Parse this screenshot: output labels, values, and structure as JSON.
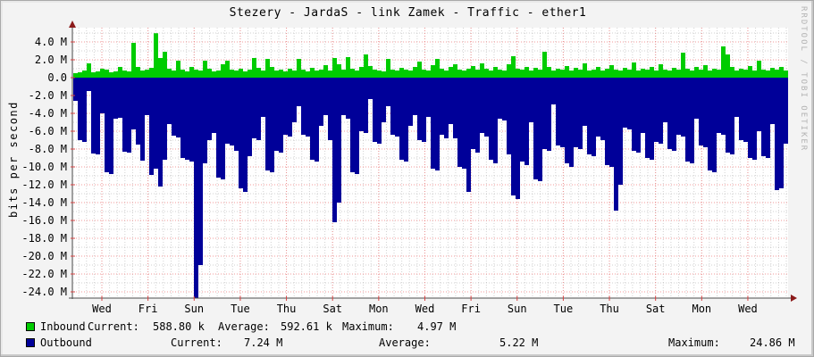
{
  "title": "Stezery - JardaS - link Zamek - Traffic - ether1",
  "watermark": "RRDTOOL / TOBI OETIKER",
  "colors": {
    "inbound": "#00CC00",
    "outbound": "#000099",
    "grid_major": "#f07e7e",
    "grid_minor": "#9a9a9a",
    "axis": "#4d4d4d",
    "arrow": "#8b1a1a",
    "tick": "#d84040",
    "plot_bg": "#ffffff",
    "canvas_bg": "#f3f3f3"
  },
  "legend": {
    "rows": [
      {
        "name": "Inbound",
        "color_key": "inbound",
        "labels": {
          "current": "Current:",
          "average": "Average:",
          "maximum": "Maximum:"
        },
        "current": "588.80 k",
        "average": "592.61 k",
        "maximum": "4.97 M"
      },
      {
        "name": "Outbound",
        "color_key": "outbound",
        "labels": {
          "current": "Current:",
          "average": "Average:",
          "maximum": "Maximum:"
        },
        "current": "7.24 M",
        "average": "5.22 M",
        "maximum": "24.86 M"
      }
    ]
  },
  "chart_data": {
    "type": "area",
    "title": "Stezery - JardaS - link Zamek - Traffic - ether1",
    "ylabel": "bits per second",
    "unit": "Mbps",
    "ylim": [
      -24.7,
      5.6
    ],
    "grid": true,
    "legend_position": "bottom",
    "x_description": "two-week span, tick labels every 2 days",
    "x_tick_labels": [
      "Wed",
      "Fri",
      "Sun",
      "Tue",
      "Thu",
      "Sat",
      "Mon",
      "Wed",
      "Fri",
      "Sun",
      "Tue",
      "Thu",
      "Sat",
      "Mon",
      "Wed"
    ],
    "y_ticks": [
      {
        "value": 4,
        "label": "4.0 M"
      },
      {
        "value": 2,
        "label": "2.0 M"
      },
      {
        "value": 0,
        "label": "0.0"
      },
      {
        "value": -2,
        "label": "-2.0 M"
      },
      {
        "value": -4,
        "label": "-4.0 M"
      },
      {
        "value": -6,
        "label": "-6.0 M"
      },
      {
        "value": -8,
        "label": "-8.0 M"
      },
      {
        "value": -10,
        "label": "-10.0 M"
      },
      {
        "value": -12,
        "label": "-12.0 M"
      },
      {
        "value": -14,
        "label": "-14.0 M"
      },
      {
        "value": -16,
        "label": "-16.0 M"
      },
      {
        "value": -18,
        "label": "-18.0 M"
      },
      {
        "value": -20,
        "label": "-20.0 M"
      },
      {
        "value": -22,
        "label": "-22.0 M"
      },
      {
        "value": -24,
        "label": "-24.0 M"
      }
    ],
    "series": [
      {
        "name": "Inbound",
        "sign": "positive",
        "color": "#00CC00"
      },
      {
        "name": "Outbound",
        "sign": "negative",
        "color": "#000099"
      }
    ],
    "samples": [
      [
        0.5,
        -2.6
      ],
      [
        0.6,
        -7.0
      ],
      [
        0.8,
        -7.2
      ],
      [
        1.6,
        -1.5
      ],
      [
        0.6,
        -8.5
      ],
      [
        0.7,
        -8.6
      ],
      [
        1.0,
        -4.0
      ],
      [
        0.9,
        -10.6
      ],
      [
        0.6,
        -10.8
      ],
      [
        0.7,
        -4.6
      ],
      [
        1.2,
        -4.5
      ],
      [
        0.8,
        -8.3
      ],
      [
        0.7,
        -8.4
      ],
      [
        3.9,
        -5.8
      ],
      [
        1.2,
        -7.5
      ],
      [
        0.8,
        -9.3
      ],
      [
        0.9,
        -4.2
      ],
      [
        1.1,
        -10.9
      ],
      [
        4.97,
        -10.2
      ],
      [
        2.2,
        -12.2
      ],
      [
        2.9,
        -9.2
      ],
      [
        1.0,
        -5.2
      ],
      [
        0.8,
        -6.5
      ],
      [
        1.9,
        -6.7
      ],
      [
        0.9,
        -9.0
      ],
      [
        0.7,
        -9.2
      ],
      [
        1.2,
        -9.4
      ],
      [
        0.9,
        -24.86
      ],
      [
        0.8,
        -21.0
      ],
      [
        1.9,
        -9.6
      ],
      [
        1.0,
        -7.0
      ],
      [
        0.7,
        -6.2
      ],
      [
        0.8,
        -11.2
      ],
      [
        1.5,
        -11.4
      ],
      [
        1.9,
        -7.4
      ],
      [
        0.9,
        -7.6
      ],
      [
        0.8,
        -8.2
      ],
      [
        1.0,
        -12.4
      ],
      [
        0.7,
        -12.8
      ],
      [
        0.9,
        -8.8
      ],
      [
        2.2,
        -6.8
      ],
      [
        1.1,
        -7.0
      ],
      [
        0.8,
        -4.4
      ],
      [
        2.1,
        -10.4
      ],
      [
        1.2,
        -10.6
      ],
      [
        0.8,
        -8.2
      ],
      [
        0.9,
        -8.4
      ],
      [
        0.7,
        -6.4
      ],
      [
        1.0,
        -6.6
      ],
      [
        0.8,
        -5.0
      ],
      [
        2.1,
        -3.2
      ],
      [
        0.9,
        -6.4
      ],
      [
        0.7,
        -6.6
      ],
      [
        1.1,
        -9.2
      ],
      [
        0.8,
        -9.4
      ],
      [
        0.9,
        -5.4
      ],
      [
        1.4,
        -4.2
      ],
      [
        0.8,
        -7.0
      ],
      [
        2.2,
        -16.2
      ],
      [
        1.5,
        -14.0
      ],
      [
        0.9,
        -4.2
      ],
      [
        2.3,
        -4.6
      ],
      [
        1.0,
        -10.6
      ],
      [
        0.8,
        -10.8
      ],
      [
        1.2,
        -6.0
      ],
      [
        2.6,
        -6.2
      ],
      [
        1.3,
        -2.4
      ],
      [
        0.9,
        -7.2
      ],
      [
        0.8,
        -7.4
      ],
      [
        0.7,
        -5.0
      ],
      [
        2.1,
        -3.2
      ],
      [
        0.9,
        -6.4
      ],
      [
        0.8,
        -6.6
      ],
      [
        1.1,
        -9.2
      ],
      [
        0.9,
        -9.4
      ],
      [
        0.8,
        -5.4
      ],
      [
        1.2,
        -4.2
      ],
      [
        1.8,
        -7.0
      ],
      [
        0.9,
        -7.2
      ],
      [
        0.8,
        -4.4
      ],
      [
        1.4,
        -10.2
      ],
      [
        2.1,
        -10.4
      ],
      [
        1.0,
        -6.4
      ],
      [
        0.8,
        -6.8
      ],
      [
        1.2,
        -5.2
      ],
      [
        1.5,
        -6.8
      ],
      [
        0.9,
        -10.0
      ],
      [
        0.8,
        -10.2
      ],
      [
        1.0,
        -12.8
      ],
      [
        1.3,
        -8.0
      ],
      [
        0.9,
        -8.4
      ],
      [
        1.6,
        -6.2
      ],
      [
        1.0,
        -6.6
      ],
      [
        0.8,
        -9.2
      ],
      [
        1.2,
        -9.6
      ],
      [
        0.9,
        -4.6
      ],
      [
        0.8,
        -4.8
      ],
      [
        1.5,
        -8.6
      ],
      [
        2.4,
        -13.2
      ],
      [
        1.0,
        -13.6
      ],
      [
        0.9,
        -9.4
      ],
      [
        1.2,
        -9.8
      ],
      [
        0.8,
        -5.0
      ],
      [
        1.1,
        -11.4
      ],
      [
        0.9,
        -11.6
      ],
      [
        2.9,
        -8.0
      ],
      [
        1.2,
        -8.2
      ],
      [
        0.8,
        -3.0
      ],
      [
        1.0,
        -7.6
      ],
      [
        0.9,
        -7.8
      ],
      [
        1.3,
        -9.6
      ],
      [
        0.8,
        -10.0
      ],
      [
        1.1,
        -7.8
      ],
      [
        0.9,
        -8.0
      ],
      [
        1.6,
        -5.4
      ],
      [
        0.8,
        -8.6
      ],
      [
        0.9,
        -8.8
      ],
      [
        1.2,
        -6.6
      ],
      [
        0.8,
        -7.0
      ],
      [
        1.0,
        -9.8
      ],
      [
        1.4,
        -10.0
      ],
      [
        0.9,
        -14.9
      ],
      [
        0.8,
        -12.0
      ],
      [
        1.1,
        -5.6
      ],
      [
        0.9,
        -5.8
      ],
      [
        1.7,
        -8.2
      ],
      [
        0.8,
        -8.4
      ],
      [
        1.0,
        -6.2
      ],
      [
        0.9,
        -9.0
      ],
      [
        1.2,
        -9.2
      ],
      [
        0.8,
        -7.2
      ],
      [
        1.5,
        -7.4
      ],
      [
        0.9,
        -5.0
      ],
      [
        0.8,
        -8.0
      ],
      [
        1.1,
        -8.2
      ],
      [
        0.9,
        -6.4
      ],
      [
        2.8,
        -6.6
      ],
      [
        1.0,
        -9.4
      ],
      [
        0.8,
        -9.6
      ],
      [
        1.2,
        -4.6
      ],
      [
        0.9,
        -7.6
      ],
      [
        1.4,
        -7.8
      ],
      [
        0.8,
        -10.4
      ],
      [
        1.0,
        -10.6
      ],
      [
        0.9,
        -6.2
      ],
      [
        3.5,
        -6.4
      ],
      [
        2.6,
        -8.4
      ],
      [
        1.2,
        -8.6
      ],
      [
        0.8,
        -4.4
      ],
      [
        1.0,
        -7.0
      ],
      [
        0.9,
        -7.2
      ],
      [
        1.3,
        -9.0
      ],
      [
        0.8,
        -9.2
      ],
      [
        1.9,
        -6.0
      ],
      [
        0.9,
        -8.8
      ],
      [
        0.8,
        -9.0
      ],
      [
        1.1,
        -5.2
      ],
      [
        0.9,
        -12.6
      ],
      [
        1.2,
        -12.4
      ],
      [
        0.8,
        -7.4
      ]
    ]
  }
}
